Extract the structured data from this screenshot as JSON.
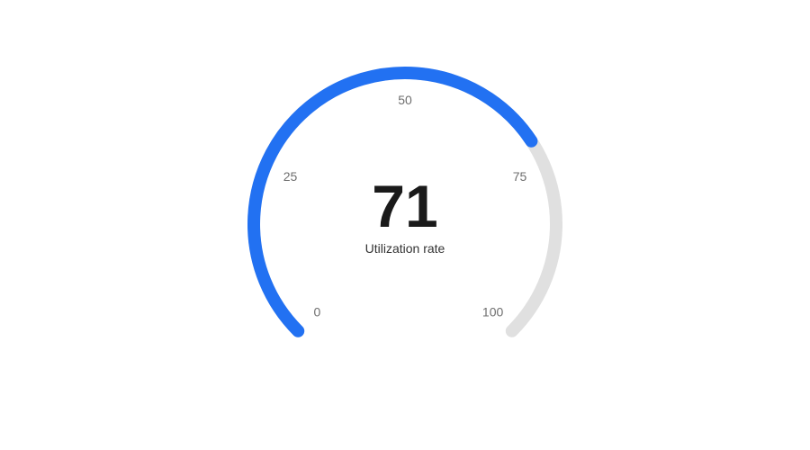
{
  "chart_data": {
    "type": "gauge",
    "value": 71,
    "min": 0,
    "max": 100,
    "ticks": [
      {
        "value": 0,
        "label": "0"
      },
      {
        "value": 25,
        "label": "25"
      },
      {
        "value": 50,
        "label": "50"
      },
      {
        "value": 75,
        "label": "75"
      },
      {
        "value": 100,
        "label": "100"
      }
    ],
    "value_label": "71",
    "caption": "Utilization rate",
    "colors": {
      "progress": "#2271f2",
      "track": "#e0e0e0"
    }
  }
}
